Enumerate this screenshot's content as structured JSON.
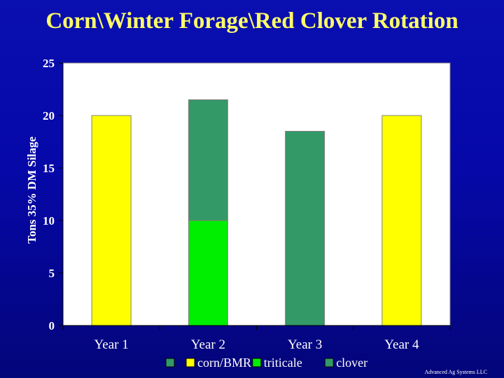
{
  "slide": {
    "title": "Corn\\Winter Forage\\Red Clover Rotation",
    "credit": "Advanced Ag Systems LLC"
  },
  "colors": {
    "corn": "#ffff00",
    "triticale": "#00ee00",
    "clover": "#339966",
    "plot_bg": "#ffffff",
    "text": "#ffffff",
    "title": "#ffff66"
  },
  "chart_data": {
    "type": "bar",
    "stacked": true,
    "title": "",
    "ylabel": "Tons 35% DM Silage",
    "xlabel": "",
    "ylim": [
      0,
      25
    ],
    "yticks": [
      0,
      5,
      10,
      15,
      20,
      25
    ],
    "grid": false,
    "legend_position": "bottom",
    "categories": [
      "Year 1",
      "Year 2",
      "Year 3",
      "Year 4"
    ],
    "series": [
      {
        "name": "corn/BMR",
        "values": [
          20,
          0,
          0,
          20
        ]
      },
      {
        "name": "triticale",
        "values": [
          0,
          10,
          0,
          0
        ]
      },
      {
        "name": "clover",
        "values": [
          0,
          11.5,
          18.5,
          0
        ]
      }
    ]
  }
}
